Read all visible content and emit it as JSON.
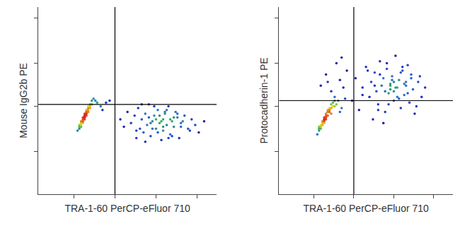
{
  "chart_data": [
    {
      "type": "scatter",
      "xlabel": "TRA-1-60 PerCP-eFluor 710",
      "ylabel": "Mouse IgG2b PE",
      "x": [
        22,
        23,
        23,
        24,
        24,
        24,
        25,
        25,
        25,
        26,
        26,
        26,
        26,
        27,
        27,
        27,
        28,
        28,
        28,
        29,
        29,
        30,
        30,
        31,
        23,
        25,
        26,
        27,
        28,
        24,
        25,
        26,
        27,
        29,
        32,
        33,
        35,
        38,
        36,
        40,
        46,
        48,
        50,
        52,
        54,
        55,
        56,
        57,
        58,
        59,
        60,
        61,
        62,
        63,
        64,
        65,
        66,
        67,
        68,
        69,
        70,
        70,
        71,
        72,
        73,
        74,
        75,
        76,
        77,
        78,
        79,
        80,
        82,
        84,
        86,
        88,
        90,
        93,
        60,
        62,
        65,
        67,
        68,
        70,
        72,
        74,
        75,
        78,
        80,
        55,
        58,
        63,
        66,
        71,
        73,
        76,
        81,
        85,
        64,
        69
      ],
      "y": [
        34,
        35,
        37,
        36,
        38,
        39,
        38,
        40,
        41,
        40,
        42,
        43,
        41,
        43,
        44,
        45,
        44,
        46,
        47,
        46,
        48,
        48,
        50,
        51,
        36,
        39,
        41,
        42,
        45,
        37,
        39,
        42,
        44,
        47,
        50,
        49,
        47,
        49,
        45,
        50,
        40,
        36,
        44,
        38,
        42,
        30,
        46,
        35,
        40,
        33,
        43,
        37,
        48,
        31,
        39,
        42,
        35,
        45,
        38,
        29,
        40,
        34,
        43,
        37,
        47,
        32,
        39,
        36,
        44,
        41,
        30,
        38,
        42,
        35,
        40,
        37,
        33,
        39,
        28,
        41,
        47,
        33,
        42,
        36,
        45,
        40,
        31,
        43,
        36,
        34,
        48,
        38,
        40,
        44,
        30,
        41,
        39,
        34,
        35,
        39
      ],
      "xlim": [
        0,
        100
      ],
      "ylim": [
        0,
        100
      ],
      "xticks": [
        20,
        43,
        66,
        89
      ],
      "yticks": [
        23,
        47,
        70,
        94
      ],
      "tick_labels": false,
      "quadrant": {
        "x": 43,
        "y": 48
      }
    },
    {
      "type": "scatter",
      "xlabel": "TRA-1-60 PerCP-eFluor 710",
      "ylabel": "Protocadherin-1 PE",
      "x": [
        22,
        23,
        23,
        24,
        24,
        25,
        25,
        25,
        26,
        26,
        26,
        27,
        27,
        27,
        28,
        28,
        28,
        29,
        29,
        30,
        30,
        31,
        31,
        32,
        23,
        24,
        26,
        27,
        28,
        25,
        26,
        27,
        29,
        30,
        33,
        34,
        36,
        38,
        35,
        32,
        24,
        27,
        30,
        33,
        35,
        37,
        39,
        28,
        32,
        36,
        42,
        44,
        46,
        48,
        50,
        52,
        53,
        54,
        55,
        56,
        57,
        58,
        59,
        60,
        61,
        62,
        63,
        64,
        65,
        66,
        67,
        68,
        69,
        70,
        71,
        72,
        73,
        74,
        75,
        76,
        77,
        78,
        80,
        82,
        84,
        58,
        60,
        62,
        64,
        66,
        68,
        70,
        72,
        74,
        63,
        65,
        67,
        69,
        55,
        57,
        61,
        71,
        73,
        79,
        81,
        48,
        51,
        76,
        64,
        66
      ],
      "y": [
        32,
        34,
        36,
        35,
        37,
        38,
        37,
        39,
        40,
        39,
        41,
        42,
        40,
        43,
        42,
        44,
        45,
        44,
        46,
        46,
        48,
        47,
        49,
        50,
        35,
        36,
        40,
        41,
        44,
        37,
        38,
        42,
        45,
        43,
        48,
        50,
        46,
        51,
        44,
        47,
        58,
        64,
        55,
        70,
        61,
        57,
        66,
        60,
        52,
        73,
        50,
        62,
        45,
        57,
        68,
        52,
        60,
        40,
        65,
        55,
        48,
        71,
        58,
        62,
        44,
        67,
        54,
        59,
        63,
        50,
        74,
        57,
        61,
        46,
        66,
        53,
        58,
        69,
        49,
        62,
        56,
        43,
        60,
        52,
        57,
        64,
        38,
        70,
        56,
        60,
        52,
        65,
        59,
        54,
        48,
        61,
        57,
        51,
        58,
        45,
        55,
        68,
        60,
        47,
        63,
        53,
        66,
        64,
        58,
        55
      ],
      "xlim": [
        0,
        100
      ],
      "ylim": [
        0,
        100
      ],
      "xticks": [
        20,
        43,
        66,
        89
      ],
      "yticks": [
        23,
        47,
        70,
        94
      ],
      "tick_labels": false,
      "quadrant": {
        "x": 43,
        "y": 50
      }
    }
  ]
}
